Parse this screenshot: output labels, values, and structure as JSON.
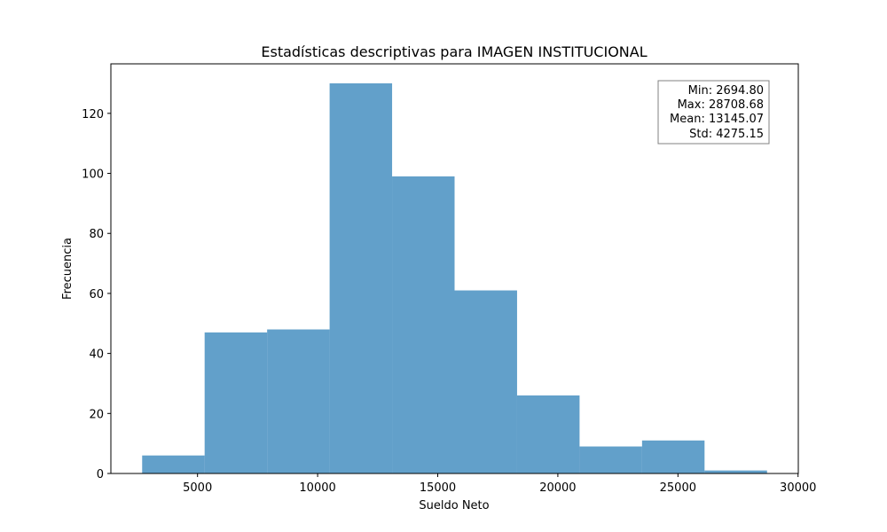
{
  "chart_data": {
    "type": "bar",
    "title": "Estadísticas descriptivas para IMAGEN INSTITUCIONAL",
    "xlabel": "Sueldo Neto",
    "ylabel": "Frecuencia",
    "bin_edges": [
      2694.8,
      5296.19,
      7897.58,
      10498.97,
      13100.36,
      15701.74,
      18303.13,
      20904.52,
      23505.91,
      26107.3,
      28708.68
    ],
    "values": [
      6,
      47,
      48,
      130,
      99,
      61,
      26,
      9,
      11,
      1
    ],
    "xlim": [
      1393,
      30010
    ],
    "ylim": [
      0,
      136.5
    ],
    "xticks": [
      5000,
      10000,
      15000,
      20000,
      25000,
      30000
    ],
    "yticks": [
      0,
      20,
      40,
      60,
      80,
      100,
      120
    ],
    "bar_color": "#1f77b4",
    "bar_opacity": 0.7,
    "grid": false,
    "stats_box": {
      "placement": "top-right",
      "lines": [
        "Min: 2694.80",
        "Max: 28708.68",
        "Mean: 13145.07",
        "Std: 4275.15"
      ]
    }
  }
}
